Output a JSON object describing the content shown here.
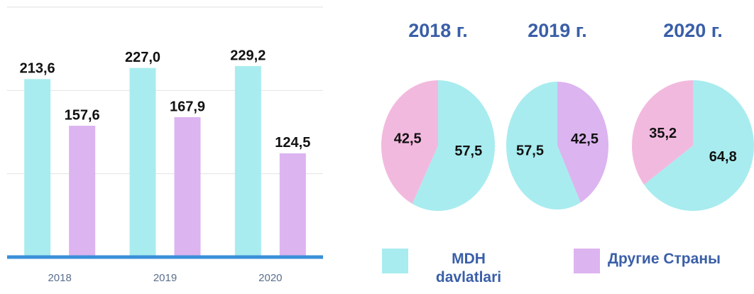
{
  "chart_data": [
    {
      "type": "bar",
      "categories": [
        "2018",
        "2019",
        "2020"
      ],
      "series": [
        {
          "name": "MDH davlatlari",
          "color": "#a8ecef",
          "values": [
            213.6,
            227.0,
            229.2
          ],
          "value_labels": [
            "213,6",
            "227,0",
            "229,2"
          ]
        },
        {
          "name": "Другие Страны",
          "color": "#dcb4f0",
          "values": [
            157.6,
            167.9,
            124.5
          ],
          "value_labels": [
            "157,6",
            "167,9",
            "124,5"
          ]
        }
      ],
      "ylim": [
        0,
        300
      ],
      "yticks": [
        0,
        100,
        200,
        300
      ],
      "grid": true
    },
    {
      "type": "pie",
      "title": "2018 г.",
      "values": [
        57.5,
        42.5
      ],
      "value_labels": [
        "57,5",
        "42,5"
      ],
      "colors": [
        "#a8ecef",
        "#f2b9de"
      ]
    },
    {
      "type": "pie",
      "title": "2019 г.",
      "values": [
        42.5,
        57.5
      ],
      "value_labels": [
        "42,5",
        "57,5"
      ],
      "colors": [
        "#dcb4f0",
        "#a8ecef"
      ]
    },
    {
      "type": "pie",
      "title": "2020 г.",
      "values": [
        64.8,
        35.2
      ],
      "value_labels": [
        "64,8",
        "35,2"
      ],
      "colors": [
        "#a8ecef",
        "#f2b9de"
      ]
    }
  ]
}
